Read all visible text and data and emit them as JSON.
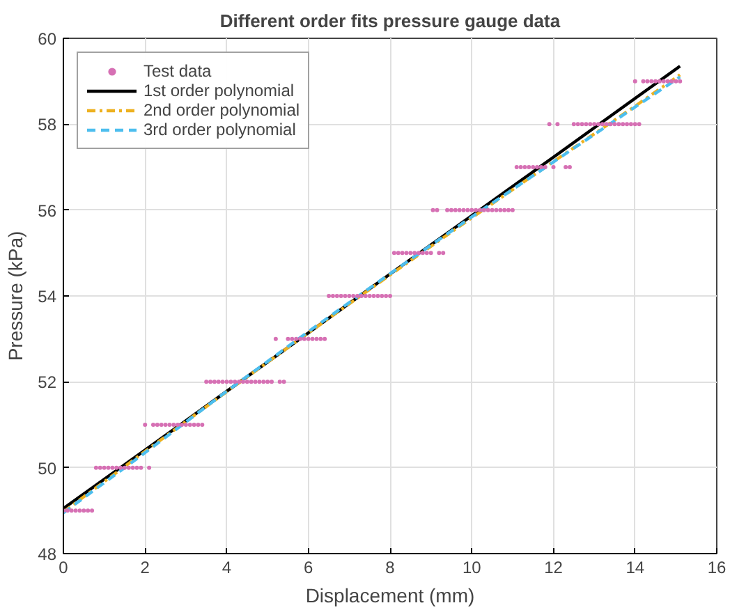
{
  "chart_data": {
    "type": "scatter",
    "title": "Different order fits pressure gauge data",
    "xlabel": "Displacement (mm)",
    "ylabel": "Pressure (kPa)",
    "xlim": [
      0,
      16
    ],
    "ylim": [
      48,
      60
    ],
    "xticks": [
      0,
      2,
      4,
      6,
      8,
      10,
      12,
      14,
      16
    ],
    "yticks": [
      48,
      50,
      52,
      54,
      56,
      58,
      60
    ],
    "grid": true,
    "legend": "top left",
    "series": [
      {
        "name": "Test data",
        "marker": "circle",
        "color": "#d670b4",
        "x": [
          0,
          0.1,
          0.2,
          0.3,
          0.4,
          0.5,
          0.6,
          0.7,
          0.8,
          0.9,
          1.0,
          1.1,
          1.2,
          1.3,
          1.4,
          1.5,
          1.6,
          1.7,
          1.8,
          1.9,
          2.1,
          2.0,
          2.2,
          2.3,
          2.4,
          2.5,
          2.6,
          2.7,
          2.8,
          2.9,
          3.0,
          3.1,
          3.2,
          3.3,
          3.4,
          3.5,
          3.6,
          3.7,
          3.8,
          3.9,
          4.0,
          4.1,
          4.2,
          4.3,
          4.4,
          4.5,
          4.6,
          4.7,
          4.8,
          4.9,
          5.0,
          5.1,
          5.3,
          5.4,
          5.2,
          5.5,
          5.6,
          5.7,
          5.8,
          5.9,
          6.0,
          6.1,
          6.2,
          6.3,
          6.4,
          6.5,
          6.6,
          6.7,
          6.8,
          6.9,
          7.0,
          7.1,
          7.2,
          7.3,
          7.4,
          7.5,
          7.6,
          7.7,
          7.8,
          7.9,
          8.0,
          8.1,
          8.2,
          8.3,
          8.4,
          8.5,
          8.6,
          8.7,
          8.8,
          8.9,
          9.0,
          9.2,
          9.3,
          9.05,
          9.15,
          9.4,
          9.5,
          9.6,
          9.7,
          9.8,
          9.9,
          10.0,
          10.1,
          10.2,
          10.3,
          10.4,
          10.5,
          10.6,
          10.7,
          10.8,
          10.9,
          11.0,
          11.1,
          11.2,
          11.3,
          11.4,
          11.5,
          11.6,
          11.7,
          11.8,
          12.0,
          12.3,
          12.4,
          11.9,
          12.1,
          12.5,
          12.6,
          12.7,
          12.8,
          12.9,
          13.0,
          13.1,
          13.2,
          13.3,
          13.4,
          13.5,
          13.6,
          13.7,
          13.8,
          13.9,
          14.0,
          14.1,
          14.0,
          14.2,
          14.3,
          14.4,
          14.5,
          14.6,
          14.7,
          14.8,
          14.9,
          15.0,
          15.1
        ],
        "values": [
          49,
          49,
          49,
          49,
          49,
          49,
          49,
          49,
          50,
          50,
          50,
          50,
          50,
          50,
          50,
          50,
          50,
          50,
          50,
          50,
          50,
          51,
          51,
          51,
          51,
          51,
          51,
          51,
          51,
          51,
          51,
          51,
          51,
          51,
          51,
          52,
          52,
          52,
          52,
          52,
          52,
          52,
          52,
          52,
          52,
          52,
          52,
          52,
          52,
          52,
          52,
          52,
          52,
          52,
          53,
          53,
          53,
          53,
          53,
          53,
          53,
          53,
          53,
          53,
          53,
          54,
          54,
          54,
          54,
          54,
          54,
          54,
          54,
          54,
          54,
          54,
          54,
          54,
          54,
          54,
          54,
          55,
          55,
          55,
          55,
          55,
          55,
          55,
          55,
          55,
          55,
          55,
          55,
          56,
          56,
          56,
          56,
          56,
          56,
          56,
          56,
          56,
          56,
          56,
          56,
          56,
          56,
          56,
          56,
          56,
          56,
          56,
          57,
          57,
          57,
          57,
          57,
          57,
          57,
          57,
          57,
          57,
          57,
          58,
          58,
          58,
          58,
          58,
          58,
          58,
          58,
          58,
          58,
          58,
          58,
          58,
          58,
          58,
          58,
          58,
          58,
          58,
          59,
          59,
          59,
          59,
          59,
          59,
          59,
          59,
          59,
          59,
          59
        ]
      },
      {
        "name": "1st order polynomial",
        "type": "line",
        "line_style": "solid",
        "color": "#000000",
        "x": [
          0,
          2,
          4,
          6,
          8,
          10,
          12,
          14,
          15.1
        ],
        "values": [
          49.05,
          50.41,
          51.78,
          53.14,
          54.51,
          55.87,
          57.23,
          58.6,
          59.35
        ]
      },
      {
        "name": "2nd order polynomial",
        "type": "line",
        "line_style": "dashdot",
        "color": "#edb120",
        "x": [
          0,
          2,
          4,
          6,
          8,
          10,
          12,
          14,
          15.1
        ],
        "values": [
          48.97,
          50.38,
          51.77,
          53.14,
          54.49,
          55.82,
          57.13,
          58.42,
          59.15
        ]
      },
      {
        "name": "3rd order polynomial",
        "type": "line",
        "line_style": "dashed",
        "color": "#4dbeee",
        "x": [
          0,
          2,
          4,
          6,
          8,
          10,
          12,
          14,
          15.1
        ],
        "values": [
          48.95,
          50.35,
          51.78,
          53.17,
          54.52,
          55.84,
          57.12,
          58.4,
          59.1
        ]
      }
    ]
  }
}
